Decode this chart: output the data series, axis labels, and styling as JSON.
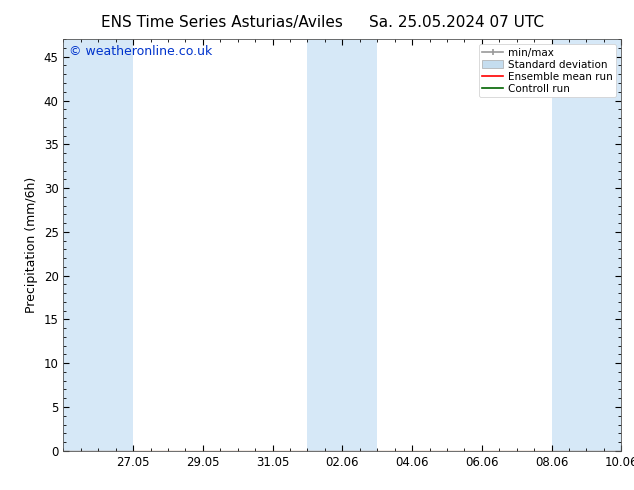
{
  "title_left": "ENS Time Series Asturias/Aviles",
  "title_right": "Sa. 25.05.2024 07 UTC",
  "ylabel": "Precipitation (mm/6h)",
  "watermark": "© weatheronline.co.uk",
  "ylim": [
    0,
    47
  ],
  "yticks": [
    0,
    5,
    10,
    15,
    20,
    25,
    30,
    35,
    40,
    45
  ],
  "background_color": "#ffffff",
  "plot_bg_color": "#ffffff",
  "shaded_color": "#d6e8f7",
  "legend_labels": [
    "min/max",
    "Standard deviation",
    "Ensemble mean run",
    "Controll run"
  ],
  "legend_colors_line": [
    "#999999",
    "#c5ddef",
    "#ff0000",
    "#006400"
  ],
  "x_date_labels": [
    "27.05",
    "29.05",
    "31.05",
    "02.06",
    "04.06",
    "06.06",
    "08.06",
    "10.06"
  ],
  "x_tick_positions": [
    2,
    4,
    6,
    8,
    10,
    12,
    14,
    16
  ],
  "shaded_bands": [
    {
      "x_start": 0,
      "x_end": 2
    },
    {
      "x_start": 7,
      "x_end": 9
    },
    {
      "x_start": 14,
      "x_end": 16
    }
  ],
  "x_axis_start": 0,
  "x_axis_end": 16
}
